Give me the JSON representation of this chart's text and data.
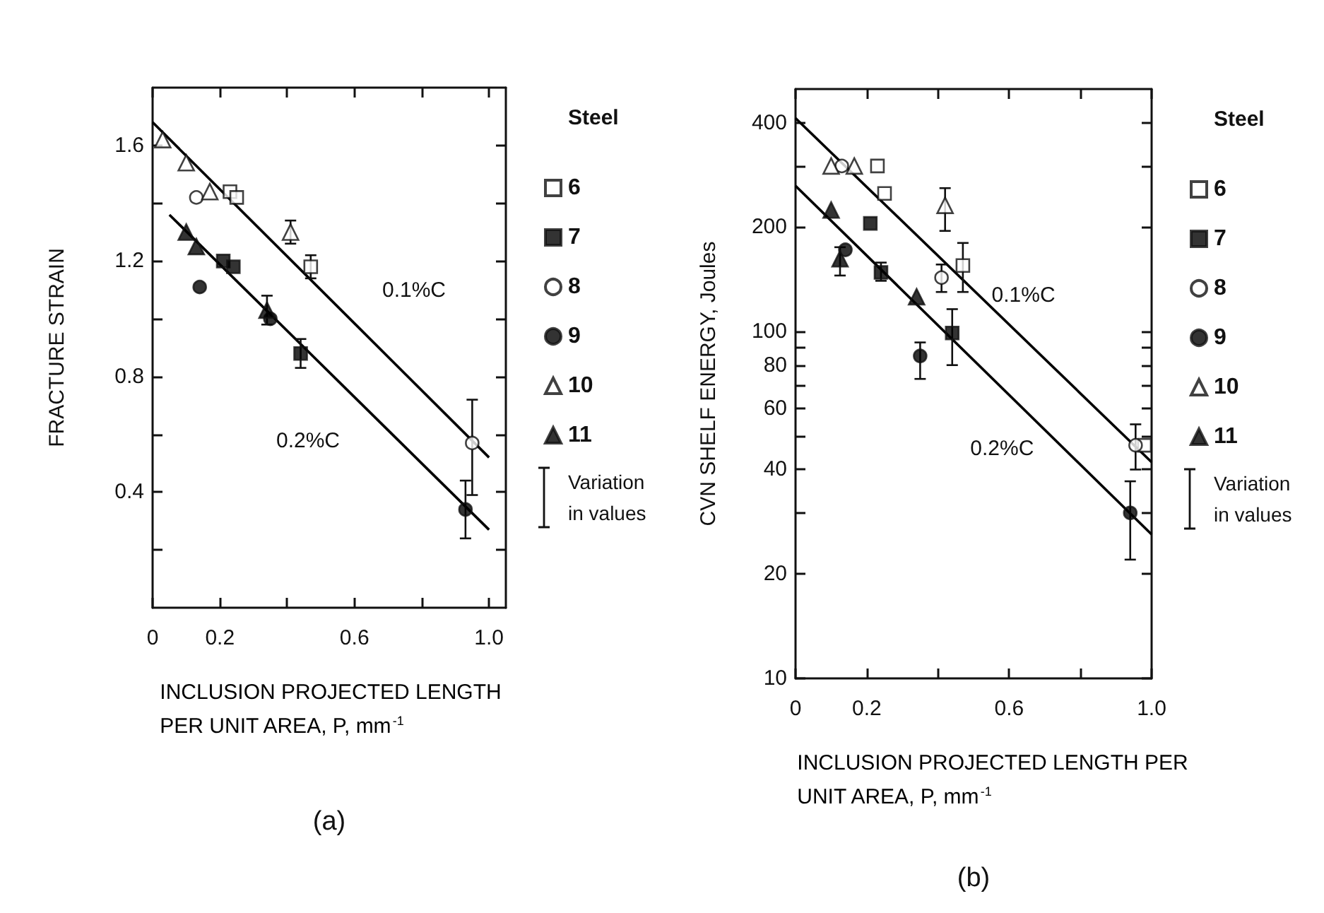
{
  "chart_data": [
    {
      "type": "scatter",
      "title": "(a)",
      "xlabel": "INCLUSION PROJECTED LENGTH PER UNIT AREA, P, mm$^{-1}$",
      "ylabel": "FRACTURE STRAIN",
      "legend_title": "Steel",
      "legend": "right",
      "xlim": [
        0,
        1.05
      ],
      "xticks": [
        0,
        0.2,
        {
          "value": 0.4,
          "label": null
        },
        0.6,
        {
          "value": 0.8,
          "label": null
        },
        {
          "value": 1,
          "label": "1.0"
        }
      ],
      "ylim": [
        0,
        1.8
      ],
      "yticks": [
        {
          "value": 0.2,
          "label": null
        },
        0.4,
        {
          "value": 0.6,
          "label": null
        },
        0.8,
        {
          "value": 1,
          "label": null
        },
        1.2,
        {
          "value": 1.4,
          "label": null
        },
        1.6
      ],
      "annotations": [
        "Variation in values",
        "0.1%C",
        "0.2%C"
      ],
      "series": [
        {
          "name": "6",
          "marker": "square",
          "color": "#ffffff",
          "x": [
            0.23,
            0.25,
            0.47
          ],
          "values": [
            1.44,
            1.42,
            1.18
          ],
          "errors": [
            null,
            null,
            0.04
          ]
        },
        {
          "name": "7",
          "marker": "square",
          "color": "#000000",
          "x": [
            0.21,
            0.24,
            0.44
          ],
          "values": [
            1.2,
            1.18,
            0.88
          ],
          "errors": [
            null,
            null,
            0.05
          ]
        },
        {
          "name": "8",
          "marker": "circle",
          "color": "#ffffff",
          "x": [
            0.13,
            0.95
          ],
          "values": [
            1.42,
            0.57
          ],
          "errors": [
            null,
            [
              0.39,
              0.72
            ]
          ]
        },
        {
          "name": "9",
          "marker": "circle",
          "color": "#000000",
          "x": [
            0.14,
            0.35,
            0.93
          ],
          "values": [
            1.11,
            1.0,
            0.34
          ],
          "errors": [
            null,
            null,
            [
              0.24,
              0.44
            ]
          ]
        },
        {
          "name": "10",
          "marker": "triangle",
          "color": "#ffffff",
          "x": [
            0.03,
            0.1,
            0.17,
            0.41
          ],
          "values": [
            1.62,
            1.54,
            1.44,
            1.3
          ],
          "errors": [
            null,
            null,
            null,
            0.04
          ]
        },
        {
          "name": "11",
          "marker": "triangle",
          "color": "#000000",
          "x": [
            0.1,
            0.13,
            0.34
          ],
          "values": [
            1.3,
            1.25,
            1.03
          ],
          "errors": [
            null,
            null,
            0.05
          ]
        },
        {
          "type": "line",
          "marker": "none",
          "color": "#000000",
          "x": [
            0,
            1.0
          ],
          "values": [
            1.68,
            0.52
          ]
        },
        {
          "type": "line",
          "marker": "none",
          "color": "#000000",
          "x": [
            0.05,
            1.0
          ],
          "values": [
            1.36,
            0.27
          ]
        }
      ]
    },
    {
      "type": "scatter",
      "title": "(b)",
      "xlabel": "INCLUSION PROJECTED LENGTH PER UNIT AREA, P, mm$^{-1}$",
      "ylabel": "CVN SHELF ENERGY, Joules",
      "legend_title": "Steel",
      "legend": "right",
      "log": true,
      "xlim": [
        0,
        1.0
      ],
      "xticks": [
        0,
        0.2,
        {
          "value": 0.4,
          "label": null
        },
        0.6,
        {
          "value": 0.8,
          "label": null
        },
        {
          "value": 1,
          "label": "1.0"
        }
      ],
      "ylim": [
        10,
        500
      ],
      "yticks": [
        10,
        20,
        {
          "value": 30,
          "label": null
        },
        40,
        {
          "value": 50,
          "label": null
        },
        60,
        {
          "value": 70,
          "label": null
        },
        80,
        {
          "value": 90,
          "label": null
        },
        100,
        200,
        {
          "value": 300,
          "label": null
        },
        400
      ],
      "annotations": [
        "Variation in values",
        "0.1%C",
        "0.2%C"
      ],
      "series": [
        {
          "name": "6",
          "marker": "square",
          "color": "#ffffff",
          "x": [
            0.23,
            0.25,
            0.47,
            0.98
          ],
          "values": [
            300,
            250,
            155,
            47
          ],
          "errors": [
            null,
            null,
            [
              130,
              180
            ],
            null
          ]
        },
        {
          "name": "7",
          "marker": "square",
          "color": "#000000",
          "x": [
            0.21,
            0.24,
            0.44
          ],
          "values": [
            205,
            148,
            99
          ],
          "errors": [
            null,
            [
              140,
              158
            ],
            [
              80,
              116
            ]
          ]
        },
        {
          "name": "8",
          "marker": "circle",
          "color": "#ffffff",
          "x": [
            0.13,
            0.41,
            0.955
          ],
          "values": [
            300,
            143,
            47
          ],
          "errors": [
            null,
            [
              130,
              156
            ],
            [
              40,
              54
            ]
          ]
        },
        {
          "name": "9",
          "marker": "circle",
          "color": "#000000",
          "x": [
            0.14,
            0.35,
            0.94
          ],
          "values": [
            172,
            85,
            30
          ],
          "errors": [
            null,
            [
              73,
              93
            ],
            [
              22,
              37
            ]
          ]
        },
        {
          "name": "10",
          "marker": "triangle",
          "color": "#ffffff",
          "x": [
            0.1,
            0.165,
            0.42
          ],
          "values": [
            300,
            300,
            231
          ],
          "errors": [
            null,
            null,
            [
              195,
              259
            ]
          ]
        },
        {
          "name": "11",
          "marker": "triangle",
          "color": "#000000",
          "x": [
            0.1,
            0.125,
            0.34
          ],
          "values": [
            224,
            162,
            126
          ],
          "errors": [
            null,
            [
              145,
              175
            ],
            null
          ]
        },
        {
          "type": "line",
          "marker": "none",
          "color": "#000000",
          "x": [
            0,
            1.0
          ],
          "values": [
            412,
            42
          ]
        },
        {
          "type": "line",
          "marker": "none",
          "color": "#000000",
          "x": [
            0,
            1.0
          ],
          "values": [
            263,
            26
          ]
        }
      ]
    }
  ]
}
